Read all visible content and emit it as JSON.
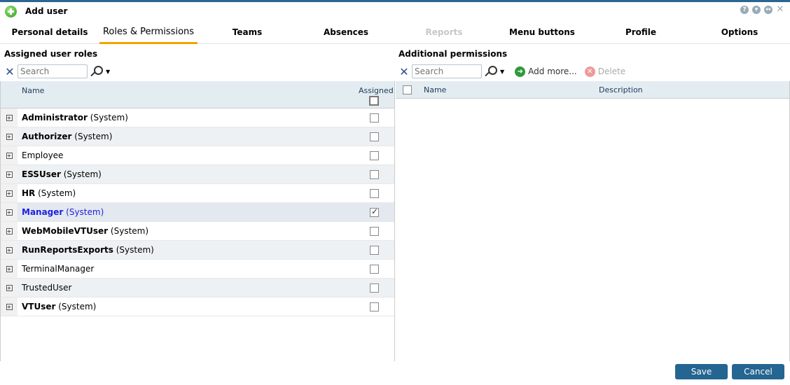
{
  "window": {
    "title": "Add user",
    "controls": [
      "help-icon",
      "minimize-icon",
      "restore-icon",
      "close-icon"
    ]
  },
  "tabs": [
    {
      "label": "Personal details",
      "state": "normal"
    },
    {
      "label": "Roles & Permissions",
      "state": "active"
    },
    {
      "label": "Teams",
      "state": "normal"
    },
    {
      "label": "Absences",
      "state": "normal"
    },
    {
      "label": "Reports",
      "state": "disabled"
    },
    {
      "label": "Menu buttons",
      "state": "normal"
    },
    {
      "label": "Profile",
      "state": "normal"
    },
    {
      "label": "Options",
      "state": "normal"
    }
  ],
  "roles": {
    "title": "Assigned user roles",
    "search_placeholder": "Search",
    "col_name": "Name",
    "col_assigned": "Assigned",
    "rows": [
      {
        "name": "Administrator",
        "suffix": "(System)",
        "bold": true,
        "assigned": false
      },
      {
        "name": "Authorizer",
        "suffix": "(System)",
        "bold": true,
        "assigned": false
      },
      {
        "name": "Employee",
        "suffix": "",
        "bold": false,
        "assigned": false
      },
      {
        "name": "ESSUser",
        "suffix": "(System)",
        "bold": true,
        "assigned": false
      },
      {
        "name": "HR",
        "suffix": "(System)",
        "bold": true,
        "assigned": false
      },
      {
        "name": "Manager",
        "suffix": "(System)",
        "bold": true,
        "assigned": true,
        "selected": true
      },
      {
        "name": "WebMobileVTUser",
        "suffix": "(System)",
        "bold": true,
        "assigned": false
      },
      {
        "name": "RunReportsExports",
        "suffix": "(System)",
        "bold": true,
        "assigned": false
      },
      {
        "name": "TerminalManager",
        "suffix": "",
        "bold": false,
        "assigned": false
      },
      {
        "name": "TrustedUser",
        "suffix": "",
        "bold": false,
        "assigned": false
      },
      {
        "name": "VTUser",
        "suffix": "(System)",
        "bold": true,
        "assigned": false
      }
    ]
  },
  "permissions": {
    "title": "Additional permissions",
    "search_placeholder": "Search",
    "add_label": "Add more...",
    "delete_label": "Delete",
    "col_name": "Name",
    "col_description": "Description"
  },
  "footer": {
    "save": "Save",
    "cancel": "Cancel"
  },
  "colors": {
    "accent": "#f5a300",
    "primary_button": "#246591",
    "selected_text": "#2020e0"
  }
}
